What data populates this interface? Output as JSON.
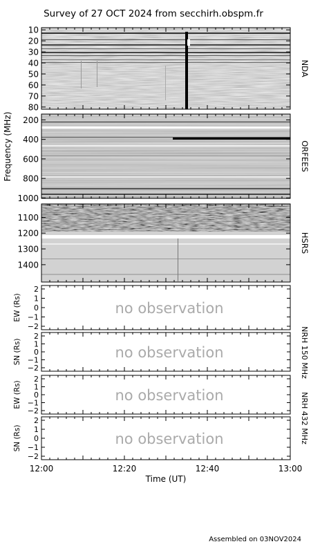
{
  "chart_data": {
    "type": "heatmap",
    "title": "Survey of 27 OCT 2024 from secchirh.obspm.fr",
    "x": {
      "label": "Time (UT)",
      "range": [
        "12:00",
        "13:00"
      ],
      "ticks": [
        "12:00",
        "12:20",
        "12:40",
        "13:00"
      ]
    },
    "frequency_label": "Frequency (MHz)",
    "spectrogram_panels": [
      {
        "name": "NDA",
        "ylim": [
          8,
          82
        ],
        "ticks": [
          10,
          20,
          30,
          40,
          50,
          60,
          70,
          80
        ],
        "tick_labels": [
          "10",
          "20",
          "30",
          "40",
          "50",
          "60",
          "70",
          "80"
        ],
        "features": [
          {
            "kind": "burst",
            "time": "12:35",
            "from": 10,
            "to": 82
          }
        ]
      },
      {
        "name": "ORFEES",
        "ylim": [
          140,
          1005
        ],
        "ticks": [
          200,
          400,
          600,
          800,
          1000
        ],
        "tick_labels": [
          "200",
          "400",
          "600",
          "800",
          "1000"
        ],
        "features": [
          {
            "kind": "band",
            "freq": 375
          }
        ]
      },
      {
        "name": "HSRS",
        "ylim": [
          1015,
          1510
        ],
        "ticks": [
          1100,
          1200,
          1300,
          1400
        ],
        "tick_labels": [
          "1100",
          "1200",
          "1300",
          "1400"
        ],
        "features": []
      }
    ],
    "position_panels": [
      {
        "ylabel": "EW (Rs)",
        "ticks": [
          2,
          1,
          0,
          -1,
          -2
        ],
        "tick_labels": [
          "2",
          "1",
          "0",
          "−1",
          "−2"
        ],
        "message": "no observation"
      },
      {
        "ylabel": "SN (Rs)",
        "ticks": [
          2,
          1,
          0,
          -1,
          -2
        ],
        "tick_labels": [
          "2",
          "1",
          "0",
          "−1",
          "−2"
        ],
        "message": "no observation"
      },
      {
        "ylabel": "EW (Rs)",
        "ticks": [
          2,
          1,
          0,
          -1,
          -2
        ],
        "tick_labels": [
          "2",
          "1",
          "0",
          "−1",
          "−2"
        ],
        "message": "no observation"
      },
      {
        "ylabel": "SN (Rs)",
        "ticks": [
          2,
          1,
          0,
          -1,
          -2
        ],
        "tick_labels": [
          "2",
          "1",
          "0",
          "−1",
          "−2"
        ],
        "message": "no observation"
      }
    ],
    "group_labels": [
      "NRH 150 MHz",
      "NRH 432 MHz"
    ]
  },
  "footer": "Assembled on 03NOV2024"
}
